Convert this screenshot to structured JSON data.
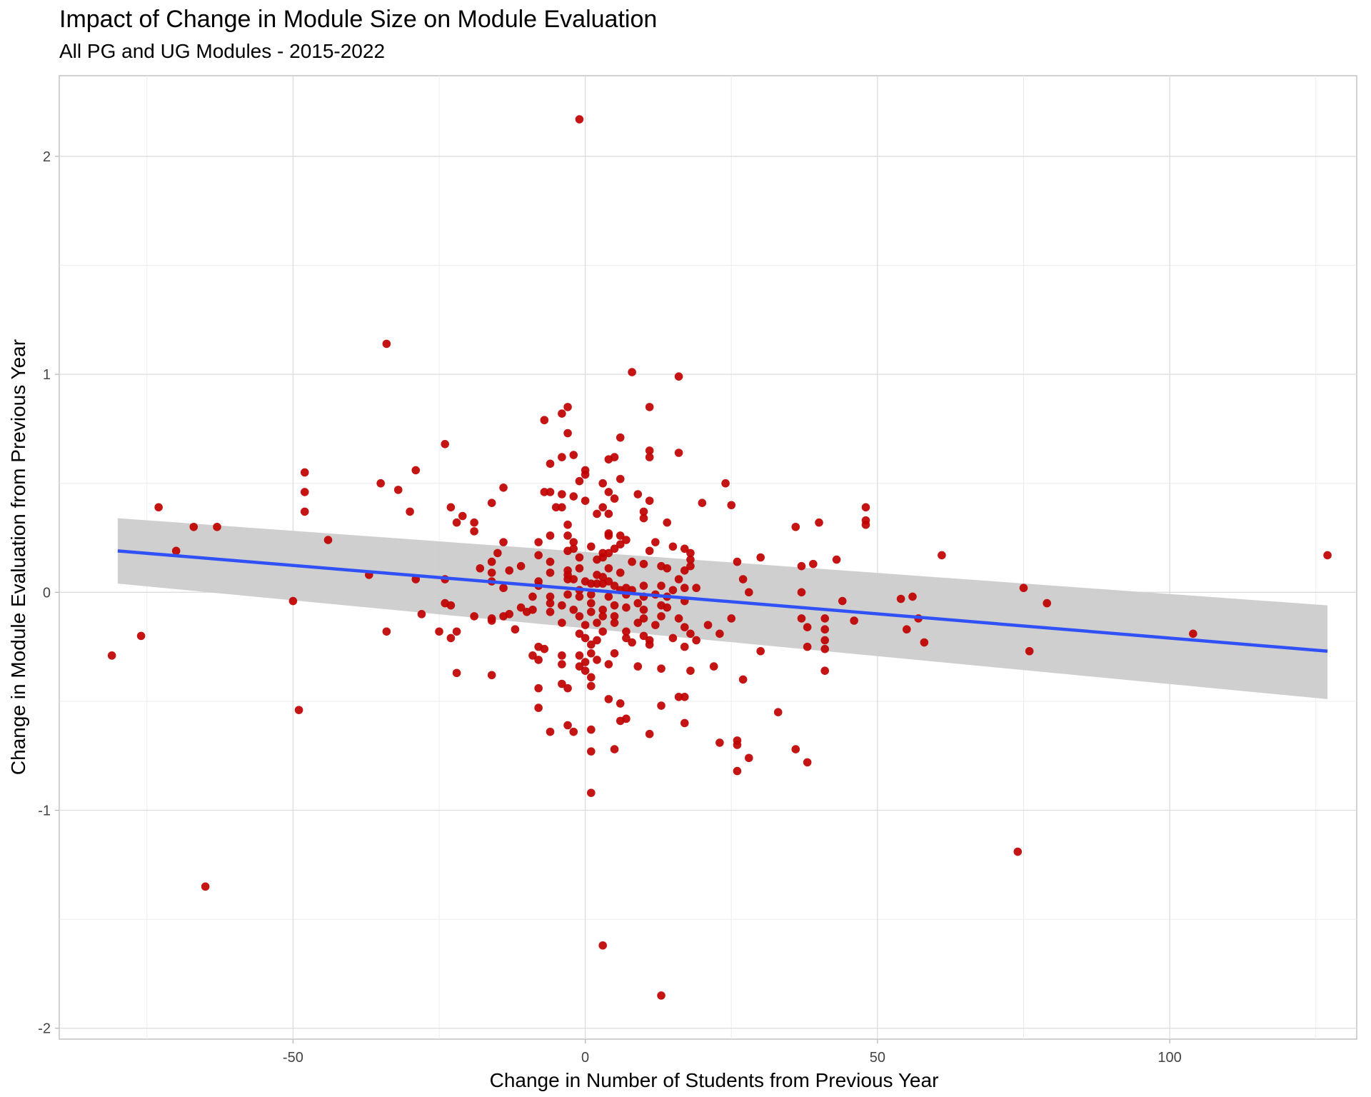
{
  "chart_data": {
    "type": "scatter",
    "title": "Impact of Change in Module Size on Module Evaluation",
    "subtitle": "All PG and UG Modules - 2015-2022",
    "xlabel": "Change in Number of Students from Previous Year",
    "ylabel": "Change in Module Evaluation from Previous Year",
    "xlim": [
      -90,
      132
    ],
    "ylim": [
      -2.05,
      2.37
    ],
    "x_ticks": [
      -50,
      0,
      50,
      100
    ],
    "x_tick_labels": [
      "-50",
      "0",
      "50",
      "100"
    ],
    "y_ticks": [
      -2,
      -1,
      0,
      1,
      2
    ],
    "y_tick_labels": [
      "-2",
      "-1",
      "0",
      "1",
      "2"
    ],
    "grid": true,
    "point_color": "#C00000",
    "line_color": "#3050F8",
    "band_color": "#CCCCCC",
    "trend_line": {
      "x": [
        -80,
        127
      ],
      "y": [
        0.19,
        -0.27
      ]
    },
    "confidence_band": {
      "x": [
        -80,
        127
      ],
      "lower": [
        0.04,
        -0.49
      ],
      "upper": [
        0.34,
        -0.06
      ]
    },
    "points": [
      [
        -1,
        2.17
      ],
      [
        -34,
        1.14
      ],
      [
        8,
        1.01
      ],
      [
        16,
        0.99
      ],
      [
        -3,
        0.85
      ],
      [
        11,
        0.85
      ],
      [
        -4,
        0.82
      ],
      [
        -7,
        0.79
      ],
      [
        -3,
        0.73
      ],
      [
        6,
        0.71
      ],
      [
        -24,
        0.68
      ],
      [
        11,
        0.65
      ],
      [
        16,
        0.64
      ],
      [
        -2,
        0.63
      ],
      [
        5,
        0.62
      ],
      [
        -4,
        0.62
      ],
      [
        4,
        0.61
      ],
      [
        11,
        0.62
      ],
      [
        -6,
        0.59
      ],
      [
        -29,
        0.56
      ],
      [
        0,
        0.56
      ],
      [
        -48,
        0.55
      ],
      [
        0,
        0.54
      ],
      [
        6,
        0.52
      ],
      [
        -1,
        0.51
      ],
      [
        3,
        0.5
      ],
      [
        24,
        0.5
      ],
      [
        -35,
        0.5
      ],
      [
        -14,
        0.48
      ],
      [
        -48,
        0.46
      ],
      [
        -32,
        0.47
      ],
      [
        -7,
        0.46
      ],
      [
        -6,
        0.46
      ],
      [
        -4,
        0.45
      ],
      [
        4,
        0.46
      ],
      [
        9,
        0.45
      ],
      [
        0,
        0.42
      ],
      [
        5,
        0.43
      ],
      [
        11,
        0.42
      ],
      [
        -2,
        0.44
      ],
      [
        -16,
        0.41
      ],
      [
        20,
        0.41
      ],
      [
        25,
        0.4
      ],
      [
        48,
        0.39
      ],
      [
        -73,
        0.39
      ],
      [
        -23,
        0.39
      ],
      [
        -48,
        0.37
      ],
      [
        -30,
        0.37
      ],
      [
        -5,
        0.39
      ],
      [
        -4,
        0.39
      ],
      [
        3,
        0.39
      ],
      [
        10,
        0.37
      ],
      [
        2,
        0.36
      ],
      [
        4,
        0.36
      ],
      [
        10,
        0.34
      ],
      [
        -21,
        0.35
      ],
      [
        -22,
        0.32
      ],
      [
        -19,
        0.32
      ],
      [
        14,
        0.32
      ],
      [
        40,
        0.32
      ],
      [
        48,
        0.33
      ],
      [
        48,
        0.31
      ],
      [
        36,
        0.3
      ],
      [
        -67,
        0.3
      ],
      [
        -63,
        0.3
      ],
      [
        -3,
        0.31
      ],
      [
        -19,
        0.28
      ],
      [
        4,
        0.27
      ],
      [
        4,
        0.26
      ],
      [
        6,
        0.26
      ],
      [
        -6,
        0.26
      ],
      [
        -3,
        0.26
      ],
      [
        -44,
        0.24
      ],
      [
        -14,
        0.23
      ],
      [
        -8,
        0.23
      ],
      [
        7,
        0.24
      ],
      [
        -2,
        0.23
      ],
      [
        12,
        0.23
      ],
      [
        6,
        0.22
      ],
      [
        -2,
        0.2
      ],
      [
        1,
        0.21
      ],
      [
        5,
        0.2
      ],
      [
        15,
        0.21
      ],
      [
        17,
        0.2
      ],
      [
        -70,
        0.19
      ],
      [
        -3,
        0.19
      ],
      [
        3,
        0.18
      ],
      [
        4,
        0.18
      ],
      [
        11,
        0.19
      ],
      [
        18,
        0.18
      ],
      [
        -1,
        0.16
      ],
      [
        3,
        0.16
      ],
      [
        -8,
        0.17
      ],
      [
        -15,
        0.18
      ],
      [
        18,
        0.15
      ],
      [
        30,
        0.16
      ],
      [
        43,
        0.15
      ],
      [
        61,
        0.17
      ],
      [
        127,
        0.17
      ],
      [
        -11,
        0.12
      ],
      [
        -16,
        0.14
      ],
      [
        -6,
        0.14
      ],
      [
        2,
        0.15
      ],
      [
        8,
        0.14
      ],
      [
        10,
        0.13
      ],
      [
        13,
        0.12
      ],
      [
        18,
        0.12
      ],
      [
        26,
        0.14
      ],
      [
        37,
        0.12
      ],
      [
        39,
        0.13
      ],
      [
        -18,
        0.11
      ],
      [
        -13,
        0.1
      ],
      [
        -3,
        0.1
      ],
      [
        -1,
        0.11
      ],
      [
        4,
        0.11
      ],
      [
        14,
        0.11
      ],
      [
        17,
        0.1
      ],
      [
        -37,
        0.08
      ],
      [
        -16,
        0.09
      ],
      [
        -6,
        0.09
      ],
      [
        -3,
        0.08
      ],
      [
        2,
        0.08
      ],
      [
        3,
        0.07
      ],
      [
        6,
        0.09
      ],
      [
        16,
        0.06
      ],
      [
        -24,
        0.06
      ],
      [
        -29,
        0.06
      ],
      [
        -16,
        0.05
      ],
      [
        -8,
        0.05
      ],
      [
        -3,
        0.06
      ],
      [
        -2,
        0.06
      ],
      [
        0,
        0.05
      ],
      [
        1,
        0.04
      ],
      [
        2,
        0.04
      ],
      [
        3,
        0.04
      ],
      [
        4,
        0.05
      ],
      [
        5,
        0.03
      ],
      [
        7,
        0.02
      ],
      [
        10,
        0.03
      ],
      [
        13,
        0.03
      ],
      [
        17,
        0.02
      ],
      [
        19,
        0.02
      ],
      [
        27,
        0.06
      ],
      [
        -14,
        0.02
      ],
      [
        -8,
        0.03
      ],
      [
        -1,
        0.01
      ],
      [
        6,
        0.01
      ],
      [
        8,
        0.01
      ],
      [
        15,
        0.01
      ],
      [
        28,
        0.0
      ],
      [
        37,
        0.0
      ],
      [
        75,
        0.02
      ],
      [
        -9,
        -0.02
      ],
      [
        -6,
        -0.02
      ],
      [
        -3,
        -0.01
      ],
      [
        -1,
        -0.02
      ],
      [
        1,
        -0.01
      ],
      [
        4,
        -0.02
      ],
      [
        7,
        -0.01
      ],
      [
        10,
        -0.02
      ],
      [
        12,
        -0.01
      ],
      [
        14,
        -0.02
      ],
      [
        17,
        -0.04
      ],
      [
        44,
        -0.04
      ],
      [
        54,
        -0.03
      ],
      [
        56,
        -0.02
      ],
      [
        -50,
        -0.04
      ],
      [
        -24,
        -0.05
      ],
      [
        -23,
        -0.06
      ],
      [
        -6,
        -0.05
      ],
      [
        -4,
        -0.06
      ],
      [
        1,
        -0.05
      ],
      [
        5,
        -0.06
      ],
      [
        9,
        -0.05
      ],
      [
        13,
        -0.06
      ],
      [
        79,
        -0.05
      ],
      [
        -11,
        -0.07
      ],
      [
        -9,
        -0.08
      ],
      [
        -6,
        -0.09
      ],
      [
        -2,
        -0.08
      ],
      [
        1,
        -0.09
      ],
      [
        3,
        -0.08
      ],
      [
        7,
        -0.07
      ],
      [
        10,
        -0.08
      ],
      [
        14,
        -0.07
      ],
      [
        -28,
        -0.1
      ],
      [
        -16,
        -0.12
      ],
      [
        -13,
        -0.1
      ],
      [
        -10,
        -0.09
      ],
      [
        -1,
        -0.11
      ],
      [
        3,
        -0.11
      ],
      [
        5,
        -0.11
      ],
      [
        10,
        -0.12
      ],
      [
        13,
        -0.11
      ],
      [
        16,
        -0.12
      ],
      [
        25,
        -0.12
      ],
      [
        37,
        -0.12
      ],
      [
        41,
        -0.12
      ],
      [
        46,
        -0.13
      ],
      [
        57,
        -0.12
      ],
      [
        -19,
        -0.11
      ],
      [
        -14,
        -0.11
      ],
      [
        -16,
        -0.13
      ],
      [
        -4,
        -0.14
      ],
      [
        0,
        -0.15
      ],
      [
        2,
        -0.14
      ],
      [
        5,
        -0.14
      ],
      [
        9,
        -0.14
      ],
      [
        12,
        -0.15
      ],
      [
        17,
        -0.16
      ],
      [
        21,
        -0.15
      ],
      [
        38,
        -0.16
      ],
      [
        -34,
        -0.18
      ],
      [
        -25,
        -0.18
      ],
      [
        -22,
        -0.18
      ],
      [
        -12,
        -0.17
      ],
      [
        -1,
        -0.19
      ],
      [
        3,
        -0.18
      ],
      [
        7,
        -0.18
      ],
      [
        10,
        -0.2
      ],
      [
        18,
        -0.19
      ],
      [
        23,
        -0.19
      ],
      [
        41,
        -0.17
      ],
      [
        55,
        -0.17
      ],
      [
        104,
        -0.19
      ],
      [
        -76,
        -0.2
      ],
      [
        -23,
        -0.21
      ],
      [
        0,
        -0.21
      ],
      [
        2,
        -0.22
      ],
      [
        7,
        -0.21
      ],
      [
        11,
        -0.22
      ],
      [
        15,
        -0.21
      ],
      [
        19,
        -0.22
      ],
      [
        41,
        -0.22
      ],
      [
        58,
        -0.23
      ],
      [
        -8,
        -0.25
      ],
      [
        -7,
        -0.26
      ],
      [
        1,
        -0.24
      ],
      [
        8,
        -0.23
      ],
      [
        11,
        -0.24
      ],
      [
        17,
        -0.25
      ],
      [
        38,
        -0.25
      ],
      [
        -81,
        -0.29
      ],
      [
        -9,
        -0.29
      ],
      [
        -4,
        -0.29
      ],
      [
        -1,
        -0.29
      ],
      [
        1,
        -0.28
      ],
      [
        5,
        -0.28
      ],
      [
        41,
        -0.26
      ],
      [
        76,
        -0.27
      ],
      [
        30,
        -0.27
      ],
      [
        -8,
        -0.31
      ],
      [
        -4,
        -0.33
      ],
      [
        0,
        -0.32
      ],
      [
        2,
        -0.31
      ],
      [
        9,
        -0.34
      ],
      [
        22,
        -0.34
      ],
      [
        -1,
        -0.34
      ],
      [
        0,
        -0.36
      ],
      [
        13,
        -0.35
      ],
      [
        4,
        -0.33
      ],
      [
        18,
        -0.36
      ],
      [
        -16,
        -0.38
      ],
      [
        -22,
        -0.37
      ],
      [
        1,
        -0.39
      ],
      [
        41,
        -0.36
      ],
      [
        27,
        -0.4
      ],
      [
        -4,
        -0.42
      ],
      [
        1,
        -0.43
      ],
      [
        -3,
        -0.44
      ],
      [
        -8,
        -0.44
      ],
      [
        16,
        -0.48
      ],
      [
        17,
        -0.48
      ],
      [
        4,
        -0.49
      ],
      [
        6,
        -0.51
      ],
      [
        13,
        -0.52
      ],
      [
        -8,
        -0.53
      ],
      [
        -49,
        -0.54
      ],
      [
        33,
        -0.55
      ],
      [
        7,
        -0.58
      ],
      [
        6,
        -0.59
      ],
      [
        17,
        -0.6
      ],
      [
        -3,
        -0.61
      ],
      [
        -6,
        -0.64
      ],
      [
        -2,
        -0.64
      ],
      [
        1,
        -0.63
      ],
      [
        11,
        -0.65
      ],
      [
        23,
        -0.69
      ],
      [
        26,
        -0.68
      ],
      [
        26,
        -0.7
      ],
      [
        5,
        -0.72
      ],
      [
        36,
        -0.72
      ],
      [
        1,
        -0.73
      ],
      [
        28,
        -0.76
      ],
      [
        38,
        -0.78
      ],
      [
        26,
        -0.82
      ],
      [
        1,
        -0.92
      ],
      [
        74,
        -1.19
      ],
      [
        -65,
        -1.35
      ],
      [
        3,
        -1.62
      ],
      [
        13,
        -1.85
      ]
    ]
  }
}
